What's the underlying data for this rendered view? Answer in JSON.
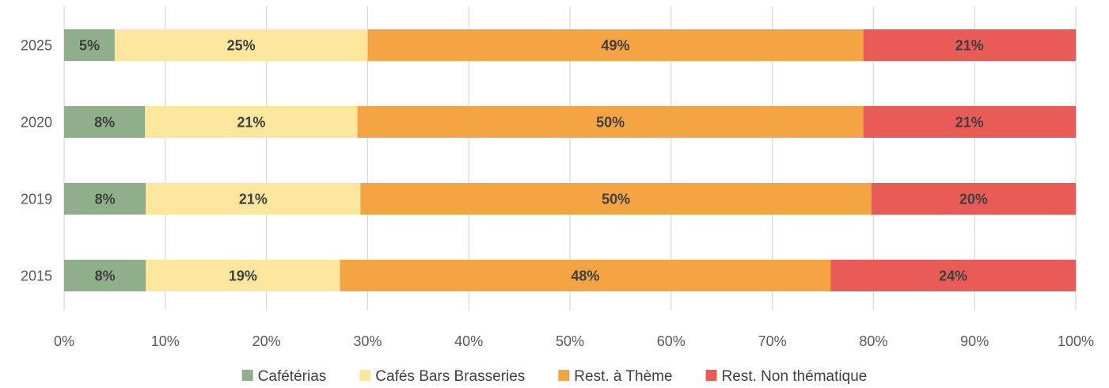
{
  "chart_data": {
    "type": "bar",
    "orientation": "horizontal",
    "stacked": "percent",
    "categories": [
      "2025",
      "2020",
      "2019",
      "2015"
    ],
    "series": [
      {
        "name": "Cafétérias",
        "color": "#8faf8b",
        "values": [
          5,
          8,
          8,
          8
        ],
        "labels": [
          "5%",
          "8%",
          "8%",
          "8%"
        ]
      },
      {
        "name": "Cafés Bars Brasseries",
        "color": "#fde69d",
        "values": [
          25,
          21,
          21,
          19
        ],
        "labels": [
          "25%",
          "21%",
          "21%",
          "19%"
        ]
      },
      {
        "name": "Rest. à Thème",
        "color": "#f4a443",
        "values": [
          49,
          50,
          50,
          48
        ],
        "labels": [
          "49%",
          "50%",
          "50%",
          "48%"
        ]
      },
      {
        "name": "Rest. Non thématique",
        "color": "#e95b56",
        "values": [
          21,
          21,
          20,
          24
        ],
        "labels": [
          "21%",
          "21%",
          "20%",
          "24%"
        ]
      }
    ],
    "xlim": [
      0,
      100
    ],
    "xticks": [
      "0%",
      "10%",
      "20%",
      "30%",
      "40%",
      "50%",
      "60%",
      "70%",
      "80%",
      "90%",
      "100%"
    ],
    "grid": true,
    "legend_position": "bottom",
    "title": "",
    "xlabel": "",
    "ylabel": ""
  }
}
